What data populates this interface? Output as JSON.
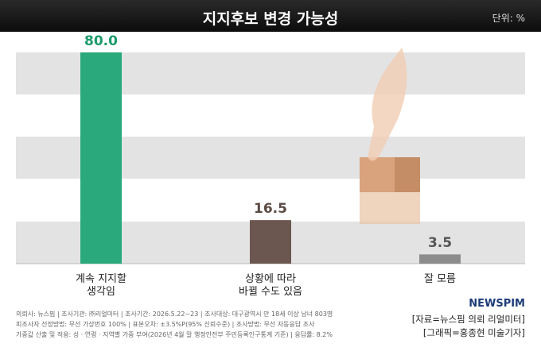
{
  "chart_data": {
    "type": "bar",
    "title": "지지후보 변경 가능성",
    "unit": "단위: %",
    "categories": [
      "계속 지지할\n생각임",
      "상황에 따라\n바뀔 수도 있음",
      "잘 모름"
    ],
    "values": [
      80,
      16.5,
      3.5
    ],
    "value_labels": [
      "80.0",
      "16.5",
      "3.5"
    ],
    "colors": [
      "#2aa97c",
      "#6b5750",
      "#8c8c8c"
    ],
    "value_label_colors": [
      "#1a9b6b",
      "#5a4a44",
      "#555555"
    ],
    "notes": [
      "의뢰사: 뉴스핌 | 조사기관: ㈜리얼미터 | 조사기간: 2026.5.22~23 | 조사대상: 대구광역시 만 18세 이상 남녀 803명",
      "피조사자 선정방법: 무선 가상번호 100% | 표본오차: ±3.5%P(95% 신뢰수준) | 조사방법: 무선 자동응답 조사",
      "가중값 산출 및 적용: 성 · 연령 · 지역별 가중 부여(2026년 4월 말 행정안전부 주민등록인구통계 기준) | 응답률: 8.2%"
    ],
    "logo": "NEWSPIM",
    "source": [
      "[자료=뉴스핌 의뢰 리얼미터]",
      "[그래픽=홍종현 미술기자]"
    ]
  }
}
